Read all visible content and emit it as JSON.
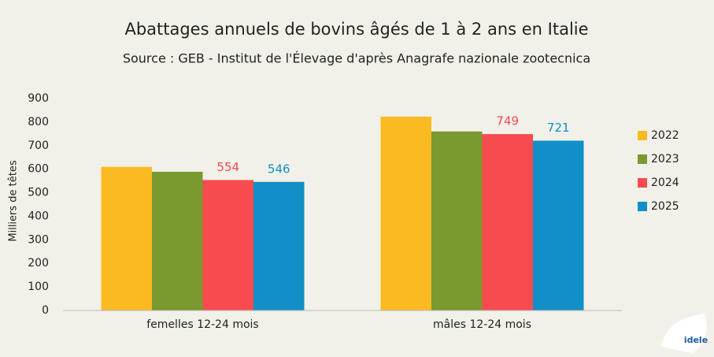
{
  "chart_data": {
    "type": "bar",
    "title": "Abattages annuels de bovins âgés de 1 à 2 ans en Italie",
    "subtitle": "Source : GEB - Institut de l'Élevage d'après Anagrafe nazionale zootecnica",
    "y_label": "Milliers de têtes",
    "categories": [
      "femelles 12-24 mois",
      "mâles 12-24 mois"
    ],
    "series": [
      {
        "name": "2022",
        "color": "#fbb922",
        "values": [
          610,
          823
        ]
      },
      {
        "name": "2023",
        "color": "#7a992e",
        "values": [
          589,
          760
        ]
      },
      {
        "name": "2024",
        "color": "#f84b4f",
        "values": [
          554,
          749
        ],
        "show_labels": true
      },
      {
        "name": "2025",
        "color": "#1090c6",
        "values": [
          546,
          721
        ],
        "show_labels": true
      }
    ],
    "ylim": [
      0,
      900
    ],
    "yticks": [
      0,
      100,
      200,
      300,
      400,
      500,
      600,
      700,
      800,
      900
    ],
    "grid": false,
    "legend": "right",
    "logo": "idele"
  }
}
